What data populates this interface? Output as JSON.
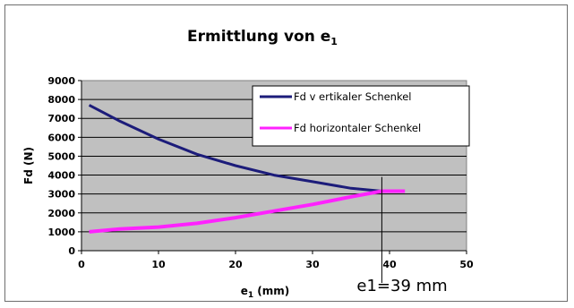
{
  "chart_data": {
    "type": "line",
    "title": "Ermittlung von e",
    "title_subscript": "1",
    "xlabel": "e",
    "xlabel_subscript": "1",
    "xlabel_unit": "(mm)",
    "ylabel": "Fd (N)",
    "xlim": [
      0,
      50
    ],
    "ylim": [
      0,
      9000
    ],
    "x_ticks": [
      0,
      10,
      20,
      30,
      40,
      50
    ],
    "y_ticks": [
      0,
      1000,
      2000,
      3000,
      4000,
      5000,
      6000,
      7000,
      8000,
      9000
    ],
    "grid": "horizontal",
    "legend_position": "top-right",
    "plot_background": "#c0c0c0",
    "series": [
      {
        "name": "Fd v ertikaler Schenkel",
        "color": "#1c1c7a",
        "x": [
          1,
          5,
          10,
          15,
          20,
          25,
          30,
          35,
          39
        ],
        "y": [
          7700,
          6850,
          5900,
          5100,
          4500,
          4000,
          3650,
          3300,
          3150
        ]
      },
      {
        "name": "Fd horizontaler Schenkel",
        "color": "#ff22ff",
        "x": [
          1,
          5,
          10,
          15,
          20,
          25,
          30,
          35,
          39,
          42
        ],
        "y": [
          1000,
          1150,
          1250,
          1450,
          1750,
          2100,
          2450,
          2850,
          3150,
          3150
        ]
      }
    ],
    "annotations": [
      {
        "text": "e1=39 mm",
        "x": 39
      }
    ]
  }
}
